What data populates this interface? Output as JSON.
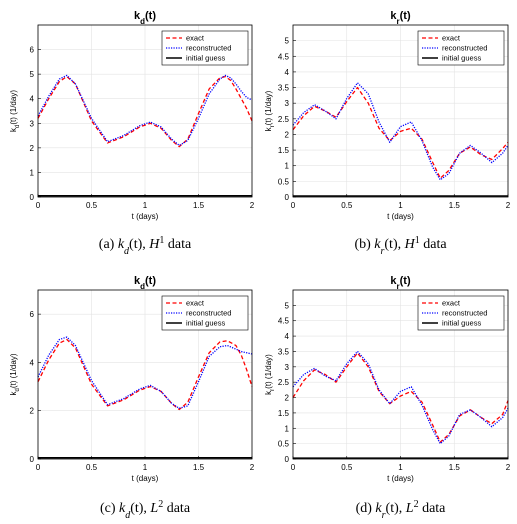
{
  "chart_data": [
    {
      "type": "line",
      "title": "k_d(t)",
      "title_parts": {
        "main": "k",
        "sub": "d",
        "tail": "(t)"
      },
      "ylabel_parts": {
        "main": "k",
        "sub": "d",
        "tail": "(t) (1/day)"
      },
      "xlabel": "t (days)",
      "xlim": [
        0,
        2
      ],
      "ylim": [
        0,
        7
      ],
      "xticks": [
        0,
        0.5,
        1,
        1.5,
        2
      ],
      "yticks": [
        0,
        1,
        2,
        3,
        4,
        5,
        6
      ],
      "grid": true,
      "legend_position": "top-right",
      "caption": {
        "label": "(a) ",
        "func": "k",
        "sub": "d",
        "arg": "(t), ",
        "space": "H",
        "sup": "1",
        "tail": " data"
      },
      "series": [
        {
          "name": "exact",
          "color": "#ff0000",
          "style": "dashed",
          "x": [
            0,
            0.1,
            0.2,
            0.27,
            0.35,
            0.5,
            0.65,
            0.8,
            0.95,
            1.05,
            1.15,
            1.25,
            1.32,
            1.4,
            1.5,
            1.6,
            1.7,
            1.75,
            1.8,
            1.85,
            1.9,
            1.95,
            2
          ],
          "y": [
            3.2,
            4.0,
            4.7,
            4.9,
            4.6,
            3.1,
            2.2,
            2.45,
            2.85,
            3.0,
            2.8,
            2.3,
            2.05,
            2.35,
            3.4,
            4.4,
            4.85,
            4.9,
            4.75,
            4.4,
            4.0,
            3.6,
            3.1
          ]
        },
        {
          "name": "reconstructed",
          "color": "#0000ff",
          "style": "dotted",
          "x": [
            0,
            0.1,
            0.2,
            0.27,
            0.35,
            0.5,
            0.65,
            0.8,
            0.95,
            1.05,
            1.15,
            1.25,
            1.32,
            1.4,
            1.5,
            1.6,
            1.7,
            1.75,
            1.8,
            1.85,
            1.9,
            1.95,
            2
          ],
          "y": [
            3.3,
            4.1,
            4.8,
            4.95,
            4.6,
            3.2,
            2.25,
            2.5,
            2.9,
            3.05,
            2.85,
            2.35,
            2.1,
            2.3,
            3.2,
            4.2,
            4.8,
            4.95,
            4.85,
            4.6,
            4.3,
            4.05,
            3.95
          ]
        },
        {
          "name": "initial guess",
          "color": "#000000",
          "style": "solid",
          "x": [
            0,
            2
          ],
          "y": [
            0.05,
            0.05
          ]
        }
      ]
    },
    {
      "type": "line",
      "title": "k_r(t)",
      "title_parts": {
        "main": "k",
        "sub": "r",
        "tail": "(t)"
      },
      "ylabel_parts": {
        "main": "k",
        "sub": "r",
        "tail": "(t) (1/day)"
      },
      "xlabel": "t (days)",
      "xlim": [
        0,
        2
      ],
      "ylim": [
        0,
        5.5
      ],
      "xticks": [
        0,
        0.5,
        1,
        1.5,
        2
      ],
      "yticks": [
        0,
        0.5,
        1,
        1.5,
        2,
        2.5,
        3,
        3.5,
        4,
        4.5,
        5
      ],
      "grid": true,
      "legend_position": "top-right",
      "caption": {
        "label": "(b) ",
        "func": "k",
        "sub": "r",
        "arg": "(t), ",
        "space": "H",
        "sup": "1",
        "tail": " data"
      },
      "series": [
        {
          "name": "exact",
          "color": "#ff0000",
          "style": "dashed",
          "x": [
            0,
            0.1,
            0.2,
            0.3,
            0.4,
            0.5,
            0.6,
            0.7,
            0.8,
            0.9,
            1.0,
            1.1,
            1.2,
            1.3,
            1.37,
            1.45,
            1.55,
            1.65,
            1.75,
            1.85,
            1.95,
            2
          ],
          "y": [
            2.15,
            2.6,
            2.9,
            2.75,
            2.55,
            3.05,
            3.5,
            3.0,
            2.2,
            1.8,
            2.1,
            2.2,
            1.85,
            1.1,
            0.6,
            0.85,
            1.4,
            1.6,
            1.35,
            1.2,
            1.55,
            1.75
          ]
        },
        {
          "name": "reconstructed",
          "color": "#0000ff",
          "style": "dotted",
          "x": [
            0,
            0.1,
            0.2,
            0.3,
            0.4,
            0.5,
            0.6,
            0.7,
            0.8,
            0.9,
            1.0,
            1.1,
            1.2,
            1.3,
            1.37,
            1.45,
            1.55,
            1.65,
            1.75,
            1.85,
            1.95,
            2
          ],
          "y": [
            2.3,
            2.7,
            2.95,
            2.75,
            2.5,
            3.15,
            3.65,
            3.3,
            2.4,
            1.75,
            2.25,
            2.4,
            1.8,
            0.95,
            0.55,
            0.75,
            1.4,
            1.65,
            1.4,
            1.1,
            1.4,
            1.65
          ]
        },
        {
          "name": "initial guess",
          "color": "#000000",
          "style": "solid",
          "x": [
            0,
            2
          ],
          "y": [
            0.03,
            0.03
          ]
        }
      ]
    },
    {
      "type": "line",
      "title": "k_d(t)",
      "title_parts": {
        "main": "k",
        "sub": "d",
        "tail": "(t)"
      },
      "ylabel_parts": {
        "main": "k",
        "sub": "d",
        "tail": "(t) (1/day)"
      },
      "xlabel": "t (days)",
      "xlim": [
        0,
        2
      ],
      "ylim": [
        0,
        7
      ],
      "xticks": [
        0,
        0.5,
        1,
        1.5,
        2
      ],
      "yticks": [
        0,
        2,
        4,
        6
      ],
      "grid": true,
      "legend_position": "top-right",
      "caption": {
        "label": "(c) ",
        "func": "k",
        "sub": "d",
        "arg": "(t), ",
        "space": "L",
        "sup": "2",
        "tail": " data"
      },
      "series": [
        {
          "name": "exact",
          "color": "#ff0000",
          "style": "dashed",
          "x": [
            0,
            0.1,
            0.2,
            0.27,
            0.35,
            0.5,
            0.65,
            0.8,
            0.95,
            1.05,
            1.15,
            1.25,
            1.32,
            1.4,
            1.5,
            1.6,
            1.7,
            1.77,
            1.85,
            1.9,
            1.95,
            2
          ],
          "y": [
            3.2,
            4.1,
            4.8,
            4.95,
            4.6,
            3.1,
            2.2,
            2.45,
            2.85,
            3.0,
            2.8,
            2.3,
            2.05,
            2.35,
            3.4,
            4.4,
            4.85,
            4.9,
            4.7,
            4.3,
            3.7,
            3.0
          ]
        },
        {
          "name": "reconstructed",
          "color": "#0000ff",
          "style": "dotted",
          "x": [
            0,
            0.1,
            0.2,
            0.27,
            0.35,
            0.5,
            0.65,
            0.8,
            0.95,
            1.05,
            1.15,
            1.25,
            1.32,
            1.4,
            1.5,
            1.6,
            1.7,
            1.77,
            1.85,
            1.9,
            1.95,
            2
          ],
          "y": [
            3.4,
            4.3,
            4.95,
            5.05,
            4.7,
            3.25,
            2.25,
            2.5,
            2.9,
            3.05,
            2.8,
            2.3,
            2.1,
            2.2,
            3.2,
            4.25,
            4.65,
            4.7,
            4.55,
            4.45,
            4.4,
            4.35
          ]
        },
        {
          "name": "initial guess",
          "color": "#000000",
          "style": "solid",
          "x": [
            0,
            2
          ],
          "y": [
            0.05,
            0.05
          ]
        }
      ]
    },
    {
      "type": "line",
      "title": "k_r(t)",
      "title_parts": {
        "main": "k",
        "sub": "r",
        "tail": "(t)"
      },
      "ylabel_parts": {
        "main": "k",
        "sub": "r",
        "tail": "(t) (1/day)"
      },
      "xlabel": "t (days)",
      "xlim": [
        0,
        2
      ],
      "ylim": [
        0,
        5.5
      ],
      "xticks": [
        0,
        0.5,
        1,
        1.5,
        2
      ],
      "yticks": [
        0,
        0.5,
        1,
        1.5,
        2,
        2.5,
        3,
        3.5,
        4,
        4.5,
        5
      ],
      "grid": true,
      "legend_position": "top-right",
      "caption": {
        "label": "(d) ",
        "func": "k",
        "sub": "r",
        "arg": "(t), ",
        "space": "L",
        "sup": "2",
        "tail": " data"
      },
      "series": [
        {
          "name": "exact",
          "color": "#ff0000",
          "style": "dashed",
          "x": [
            0,
            0.1,
            0.2,
            0.3,
            0.4,
            0.5,
            0.6,
            0.7,
            0.8,
            0.9,
            1.0,
            1.1,
            1.2,
            1.3,
            1.37,
            1.45,
            1.55,
            1.65,
            1.75,
            1.85,
            1.95,
            2
          ],
          "y": [
            2.0,
            2.55,
            2.9,
            2.75,
            2.5,
            3.0,
            3.45,
            3.0,
            2.2,
            1.8,
            2.05,
            2.2,
            1.85,
            1.1,
            0.55,
            0.8,
            1.4,
            1.6,
            1.35,
            1.15,
            1.45,
            1.9
          ]
        },
        {
          "name": "reconstructed",
          "color": "#0000ff",
          "style": "dotted",
          "x": [
            0,
            0.1,
            0.2,
            0.3,
            0.4,
            0.5,
            0.6,
            0.7,
            0.8,
            0.9,
            1.0,
            1.1,
            1.2,
            1.3,
            1.37,
            1.45,
            1.55,
            1.65,
            1.75,
            1.85,
            1.95,
            2
          ],
          "y": [
            2.35,
            2.75,
            2.95,
            2.7,
            2.55,
            3.1,
            3.5,
            3.1,
            2.25,
            1.8,
            2.2,
            2.35,
            1.75,
            0.95,
            0.5,
            0.75,
            1.45,
            1.6,
            1.35,
            1.05,
            1.35,
            1.65
          ]
        },
        {
          "name": "initial guess",
          "color": "#000000",
          "style": "solid",
          "x": [
            0,
            2
          ],
          "y": [
            0.03,
            0.03
          ]
        }
      ]
    }
  ]
}
